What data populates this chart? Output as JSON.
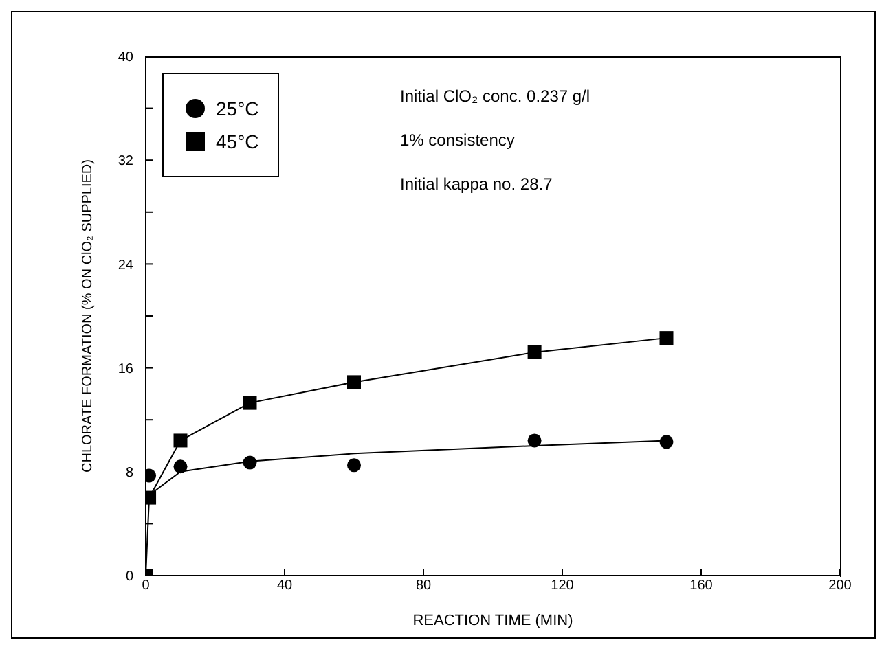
{
  "chart_data": {
    "type": "line",
    "xlabel": "REACTION TIME (MIN)",
    "ylabel": "CHLORATE FORMATION (% ON ClO₂ SUPPLIED)",
    "xlim": [
      0,
      200
    ],
    "xticks": [
      0,
      40,
      80,
      120,
      160,
      200
    ],
    "ylim": [
      0,
      40
    ],
    "yticks": [
      0,
      {
        "value": 4,
        "label": null
      },
      8,
      {
        "value": 12,
        "label": null
      },
      16,
      {
        "value": 20,
        "label": null
      },
      24,
      {
        "value": 28,
        "label": null
      },
      32,
      {
        "value": 36,
        "label": null
      },
      40
    ],
    "legend": "top left",
    "grid": false,
    "line_style": "solid",
    "annotations": [
      "Initial ClO₂ conc. 0.237 g/l",
      "1% consistency",
      "Initial kappa no. 28.7"
    ],
    "series": [
      {
        "name": "25°C",
        "type": "scatter",
        "marker": "circle",
        "color": "#000000",
        "x": [
          1,
          10,
          30,
          60,
          112,
          150
        ],
        "values": [
          7.7,
          8.4,
          8.7,
          8.5,
          10.4,
          10.3
        ]
      },
      {
        "marker": "none",
        "color": "#000000",
        "x": [
          1,
          10,
          30,
          60,
          112,
          150
        ],
        "values": [
          6.2,
          8.0,
          8.8,
          9.4,
          10.0,
          10.4
        ]
      },
      {
        "name": "45°C",
        "marker": "square",
        "color": "#000000",
        "x": [
          0,
          1,
          10,
          30,
          60,
          112,
          150
        ],
        "values": [
          0,
          6.0,
          10.4,
          13.3,
          14.9,
          17.2,
          18.3
        ]
      }
    ]
  }
}
